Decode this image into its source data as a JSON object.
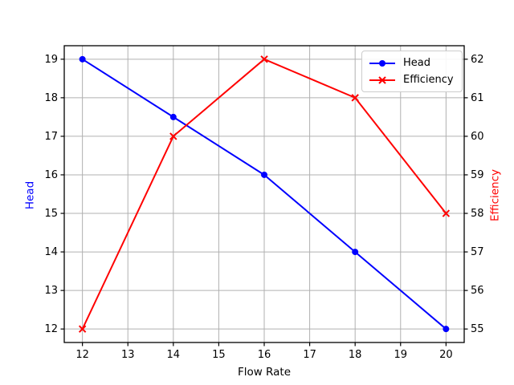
{
  "chart_data": {
    "type": "line",
    "x": [
      12,
      14,
      16,
      18,
      20
    ],
    "series": [
      {
        "name": "Head",
        "color": "#0000ff",
        "marker": "circle",
        "axis": "left",
        "values": [
          19,
          17.5,
          16,
          14,
          12
        ]
      },
      {
        "name": "Efficiency",
        "color": "#ff0000",
        "marker": "x",
        "axis": "right",
        "values": [
          55,
          60,
          62,
          61,
          58
        ]
      }
    ],
    "title": "",
    "xlabel": "Flow Rate",
    "left_ylabel": "Head",
    "right_ylabel": "Efficiency",
    "x_ticks": [
      12,
      13,
      14,
      15,
      16,
      17,
      18,
      19,
      20
    ],
    "left_ticks": [
      12,
      13,
      14,
      15,
      16,
      17,
      18,
      19
    ],
    "right_ticks": [
      55,
      56,
      57,
      58,
      59,
      60,
      61,
      62
    ],
    "xlim": [
      11.6,
      20.4
    ],
    "left_ylim": [
      11.65,
      19.35
    ],
    "right_ylim": [
      54.65,
      62.35
    ],
    "grid": true,
    "legend": {
      "position": "upper right",
      "entries": [
        "Head",
        "Efficiency"
      ]
    },
    "colors": {
      "grid": "#b0b0b0",
      "spine": "#000000",
      "tick_label": "#000000",
      "left_axis_label": "#0000ff",
      "right_axis_label": "#ff0000",
      "legend_border": "#cccccc",
      "background": "#ffffff"
    }
  }
}
